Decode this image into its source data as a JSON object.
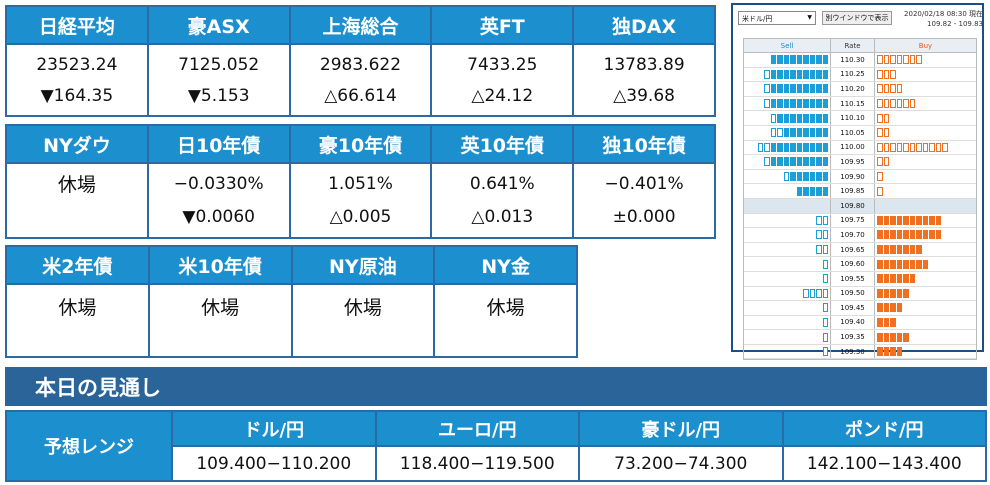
{
  "markets1": [
    {
      "name": "日経平均",
      "value": "23523.24",
      "change": "▼164.35"
    },
    {
      "name": "豪ASX",
      "value": "7125.052",
      "change": "▼5.153"
    },
    {
      "name": "上海総合",
      "value": "2983.622",
      "change": "△66.614"
    },
    {
      "name": "英FT",
      "value": "7433.25",
      "change": "△24.12"
    },
    {
      "name": "独DAX",
      "value": "13783.89",
      "change": "△39.68"
    }
  ],
  "markets2": [
    {
      "name": "NYダウ",
      "value": "休場",
      "change": ""
    },
    {
      "name": "日10年債",
      "value": "−0.0330%",
      "change": "▼0.0060"
    },
    {
      "name": "豪10年債",
      "value": "1.051%",
      "change": "△0.005"
    },
    {
      "name": "英10年債",
      "value": "0.641%",
      "change": "△0.013"
    },
    {
      "name": "独10年債",
      "value": "−0.401%",
      "change": "±0.000"
    }
  ],
  "markets3": [
    {
      "name": "米2年債",
      "value": "休場"
    },
    {
      "name": "米10年債",
      "value": "休場"
    },
    {
      "name": "NY原油",
      "value": "休場"
    },
    {
      "name": "NY金",
      "value": "休場"
    }
  ],
  "orderbook": {
    "pair": "米ドル/円",
    "new_window": "別ウインドウで表示",
    "datetime": "2020/02/18 08:30 現在",
    "range": "109.82 - 109.83",
    "header": {
      "sell": "Sell",
      "rate": "Rate",
      "buy": "Buy"
    },
    "colors": {
      "sell": "#1a9fd8",
      "buy": "#f07020"
    },
    "rows": [
      {
        "rate": "110.30",
        "sell_filled": 9,
        "sell_outline": 0,
        "buy_filled": 0,
        "buy_outline": 7
      },
      {
        "rate": "110.25",
        "sell_filled": 9,
        "sell_outline": 1,
        "buy_filled": 0,
        "buy_outline": 3
      },
      {
        "rate": "110.20",
        "sell_filled": 9,
        "sell_outline": 1,
        "buy_filled": 0,
        "buy_outline": 4
      },
      {
        "rate": "110.15",
        "sell_filled": 9,
        "sell_outline": 1,
        "buy_filled": 0,
        "buy_outline": 6
      },
      {
        "rate": "110.10",
        "sell_filled": 8,
        "sell_outline": 1,
        "buy_filled": 0,
        "buy_outline": 2
      },
      {
        "rate": "110.05",
        "sell_filled": 7,
        "sell_outline": 2,
        "buy_filled": 0,
        "buy_outline": 2
      },
      {
        "rate": "110.00",
        "sell_filled": 9,
        "sell_outline": 2,
        "buy_filled": 0,
        "buy_outline": 11
      },
      {
        "rate": "109.95",
        "sell_filled": 9,
        "sell_outline": 1,
        "buy_filled": 0,
        "buy_outline": 2
      },
      {
        "rate": "109.90",
        "sell_filled": 6,
        "sell_outline": 1,
        "buy_filled": 0,
        "buy_outline": 1
      },
      {
        "rate": "109.85",
        "sell_filled": 5,
        "sell_outline": 0,
        "buy_filled": 0,
        "buy_outline": 1
      },
      {
        "rate": "109.80",
        "sell_filled": 0,
        "sell_outline": 0,
        "buy_filled": 0,
        "buy_outline": 0
      },
      {
        "rate": "109.75",
        "sell_filled": 0,
        "sell_outline": 2,
        "buy_filled": 10,
        "buy_outline": 0
      },
      {
        "rate": "109.70",
        "sell_filled": 0,
        "sell_outline": 2,
        "buy_filled": 10,
        "buy_outline": 0
      },
      {
        "rate": "109.65",
        "sell_filled": 0,
        "sell_outline": 2,
        "buy_filled": 7,
        "buy_outline": 0
      },
      {
        "rate": "109.60",
        "sell_filled": 0,
        "sell_outline": 1,
        "buy_filled": 8,
        "buy_outline": 0
      },
      {
        "rate": "109.55",
        "sell_filled": 0,
        "sell_outline": 1,
        "buy_filled": 6,
        "buy_outline": 0
      },
      {
        "rate": "109.50",
        "sell_filled": 0,
        "sell_outline": 4,
        "buy_filled": 5,
        "buy_outline": 0
      },
      {
        "rate": "109.45",
        "sell_filled": 0,
        "sell_outline": 1,
        "buy_filled": 4,
        "buy_outline": 0
      },
      {
        "rate": "109.40",
        "sell_filled": 0,
        "sell_outline": 1,
        "buy_filled": 3,
        "buy_outline": 0
      },
      {
        "rate": "109.35",
        "sell_filled": 0,
        "sell_outline": 1,
        "buy_filled": 5,
        "buy_outline": 0
      },
      {
        "rate": "109.30",
        "sell_filled": 0,
        "sell_outline": 1,
        "buy_filled": 4,
        "buy_outline": 0
      }
    ]
  },
  "outlook": {
    "title": "本日の見通し",
    "label": "予想レンジ",
    "pairs": [
      {
        "name": "ドル/円",
        "range": "109.400−110.200"
      },
      {
        "name": "ユーロ/円",
        "range": "118.400−119.500"
      },
      {
        "name": "豪ドル/円",
        "range": "73.200−74.300"
      },
      {
        "name": "ポンド/円",
        "range": "142.100−143.400"
      }
    ]
  }
}
